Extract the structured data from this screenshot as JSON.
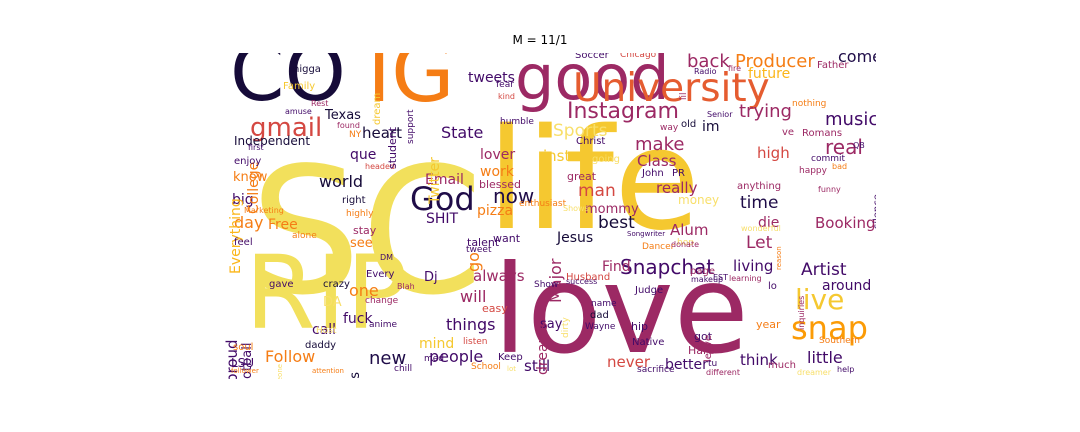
{
  "title": "M = 11/1",
  "words": [
    {
      "text": "SC",
      "color": "#f2e05c",
      "rotated": false
    },
    {
      "text": "life",
      "color": "#f5c830",
      "rotated": false
    },
    {
      "text": "love",
      "color": "#9c2964",
      "rotated": false
    },
    {
      "text": "RIP",
      "color": "#f2e05c",
      "rotated": false
    },
    {
      "text": "CO",
      "color": "#160b39",
      "rotated": false
    },
    {
      "text": "IG",
      "color": "#f57d15",
      "rotated": false
    },
    {
      "text": "good",
      "color": "#9c2964",
      "rotated": false
    },
    {
      "text": "University",
      "color": "#e55c30",
      "rotated": false
    },
    {
      "text": "Instagram",
      "color": "#9c2964",
      "rotated": false
    },
    {
      "text": "gmail",
      "color": "#d44842",
      "rotated": false
    },
    {
      "text": "God",
      "color": "#1f0c48",
      "rotated": false
    },
    {
      "text": "Snapchat",
      "color": "#420a68",
      "rotated": false
    },
    {
      "text": "snap",
      "color": "#fb9b06",
      "rotated": false
    },
    {
      "text": "live",
      "color": "#f5c830",
      "rotated": false
    },
    {
      "text": "back",
      "color": "#9c2964",
      "rotated": false
    },
    {
      "text": "Producer",
      "color": "#f57d15",
      "rotated": false
    },
    {
      "text": "come",
      "color": "#1f0c48",
      "rotated": false
    },
    {
      "text": "future",
      "color": "#fbb61a",
      "rotated": false
    },
    {
      "text": "trying",
      "color": "#9c2964",
      "rotated": false
    },
    {
      "text": "music",
      "color": "#420a68",
      "rotated": false
    },
    {
      "text": "real",
      "color": "#9c2964",
      "rotated": false
    },
    {
      "text": "Sports",
      "color": "#f8df6a",
      "rotated": false
    },
    {
      "text": "heart",
      "color": "#160b39",
      "rotated": false
    },
    {
      "text": "State",
      "color": "#420a68",
      "rotated": false
    },
    {
      "text": "que",
      "color": "#420a68",
      "rotated": false
    },
    {
      "text": "world",
      "color": "#160b39",
      "rotated": false
    },
    {
      "text": "tweets",
      "color": "#420a68",
      "rotated": false
    },
    {
      "text": "Texas",
      "color": "#160b39",
      "rotated": false
    },
    {
      "text": "make",
      "color": "#9c2964",
      "rotated": false
    },
    {
      "text": "Class",
      "color": "#9c2964",
      "rotated": false
    },
    {
      "text": "high",
      "color": "#d44842",
      "rotated": false
    },
    {
      "text": "now",
      "color": "#1f0c48",
      "rotated": false
    },
    {
      "text": "work",
      "color": "#f57d15",
      "rotated": false
    },
    {
      "text": "insta",
      "color": "#f5c830",
      "rotated": false
    },
    {
      "text": "lover",
      "color": "#9c2964",
      "rotated": false
    },
    {
      "text": "man",
      "color": "#d44842",
      "rotated": false
    },
    {
      "text": "really",
      "color": "#9c2964",
      "rotated": false
    },
    {
      "text": "best",
      "color": "#160b39",
      "rotated": false
    },
    {
      "text": "Alum",
      "color": "#9c2964",
      "rotated": false
    },
    {
      "text": "time",
      "color": "#1f0c48",
      "rotated": false
    },
    {
      "text": "Let",
      "color": "#9c2964",
      "rotated": false
    },
    {
      "text": "die",
      "color": "#9c2964",
      "rotated": false
    },
    {
      "text": "Booking",
      "color": "#9c2964",
      "rotated": false
    },
    {
      "text": "Artist",
      "color": "#420a68",
      "rotated": false
    },
    {
      "text": "around",
      "color": "#420a68",
      "rotated": false
    },
    {
      "text": "living",
      "color": "#420a68",
      "rotated": false
    },
    {
      "text": "Find",
      "color": "#9c2964",
      "rotated": false
    },
    {
      "text": "things",
      "color": "#420a68",
      "rotated": false
    },
    {
      "text": "Follow",
      "color": "#f57d15",
      "rotated": false
    },
    {
      "text": "new",
      "color": "#1f0c48",
      "rotated": false
    },
    {
      "text": "people",
      "color": "#420a68",
      "rotated": false
    },
    {
      "text": "never",
      "color": "#d44842",
      "rotated": false
    },
    {
      "text": "better",
      "color": "#420a68",
      "rotated": false
    },
    {
      "text": "think",
      "color": "#420a68",
      "rotated": false
    },
    {
      "text": "little",
      "color": "#420a68",
      "rotated": false
    },
    {
      "text": "still",
      "color": "#420a68",
      "rotated": false
    },
    {
      "text": "Email",
      "color": "#9c2964",
      "rotated": false
    },
    {
      "text": "SHIT",
      "color": "#420a68",
      "rotated": false
    },
    {
      "text": "pizza",
      "color": "#f57d15",
      "rotated": false
    },
    {
      "text": "Free",
      "color": "#f57d15",
      "rotated": false
    },
    {
      "text": "day",
      "color": "#f57d15",
      "rotated": false
    },
    {
      "text": "big",
      "color": "#420a68",
      "rotated": false
    },
    {
      "text": "know",
      "color": "#f57d15",
      "rotated": false
    },
    {
      "text": "see",
      "color": "#f57d15",
      "rotated": false
    },
    {
      "text": "one",
      "color": "#f57d15",
      "rotated": false
    },
    {
      "text": "call",
      "color": "#420a68",
      "rotated": false
    },
    {
      "text": "fuck",
      "color": "#420a68",
      "rotated": false
    },
    {
      "text": "will",
      "color": "#9c2964",
      "rotated": false
    },
    {
      "text": "always",
      "color": "#9c2964",
      "rotated": false
    },
    {
      "text": "say",
      "color": "#420a68",
      "rotated": false
    },
    {
      "text": "mind",
      "color": "#f5c830",
      "rotated": false
    },
    {
      "text": "Jesus",
      "color": "#160b39",
      "rotated": false
    },
    {
      "text": "money",
      "color": "#f8df6a",
      "rotated": false
    },
    {
      "text": "mommy",
      "color": "#9c2964",
      "rotated": false
    },
    {
      "text": "Independent",
      "color": "#160b39",
      "rotated": false
    },
    {
      "text": "Twitter",
      "color": "#f5c830",
      "rotated": true
    },
    {
      "text": "College",
      "color": "#f57d15",
      "rotated": true
    },
    {
      "text": "Everything",
      "color": "#fbb61a",
      "rotated": true
    },
    {
      "text": "proud",
      "color": "#420a68",
      "rotated": true
    },
    {
      "text": "Football",
      "color": "#420a68",
      "rotated": true
    },
    {
      "text": "go",
      "color": "#f57d15",
      "rotated": true
    },
    {
      "text": "Major",
      "color": "#9c2964",
      "rotated": true
    },
    {
      "text": "dreams",
      "color": "#9c2964",
      "rotated": true
    },
    {
      "text": "us",
      "color": "#160b39",
      "rotated": true
    },
    {
      "text": "LSU",
      "color": "#420a68",
      "rotated": false
    },
    {
      "text": "Dj",
      "color": "#420a68",
      "rotated": false
    },
    {
      "text": "DA",
      "color": "#f8df6a",
      "rotated": false
    },
    {
      "text": "Every",
      "color": "#420a68",
      "rotated": false
    },
    {
      "text": "easy",
      "color": "#d44842",
      "rotated": false
    },
    {
      "text": "talent",
      "color": "#420a68",
      "rotated": false
    },
    {
      "text": "want",
      "color": "#420a68",
      "rotated": false
    },
    {
      "text": "blessed",
      "color": "#9c2964",
      "rotated": false
    },
    {
      "text": "great",
      "color": "#9c2964",
      "rotated": false
    },
    {
      "text": "Christ",
      "color": "#420a68",
      "rotated": false
    },
    {
      "text": "going",
      "color": "#f8df6a",
      "rotated": false
    },
    {
      "text": "John",
      "color": "#420a68",
      "rotated": false
    },
    {
      "text": "PR",
      "color": "#420a68",
      "rotated": false
    },
    {
      "text": "page",
      "color": "#9c2964",
      "rotated": false
    },
    {
      "text": "hip",
      "color": "#420a68",
      "rotated": false
    },
    {
      "text": "Hard",
      "color": "#9c2964",
      "rotated": false
    },
    {
      "text": "Native",
      "color": "#420a68",
      "rotated": false
    },
    {
      "text": "got",
      "color": "#420a68",
      "rotated": false
    },
    {
      "text": "Judge",
      "color": "#420a68",
      "rotated": false
    },
    {
      "text": "dad",
      "color": "#160b39",
      "rotated": false
    },
    {
      "text": "name",
      "color": "#420a68",
      "rotated": false
    },
    {
      "text": "Wayne",
      "color": "#420a68",
      "rotated": false
    },
    {
      "text": "Husband",
      "color": "#d44842",
      "rotated": false
    },
    {
      "text": "Keep",
      "color": "#420a68",
      "rotated": false
    },
    {
      "text": "med",
      "color": "#420a68",
      "rotated": false
    },
    {
      "text": "listen",
      "color": "#d44842",
      "rotated": false
    },
    {
      "text": "School",
      "color": "#f57d15",
      "rotated": false
    },
    {
      "text": "Show",
      "color": "#420a68",
      "rotated": false
    },
    {
      "text": "crazy",
      "color": "#160b39",
      "rotated": false
    },
    {
      "text": "daddy",
      "color": "#160b39",
      "rotated": false
    },
    {
      "text": "gave",
      "color": "#420a68",
      "rotated": false
    },
    {
      "text": "feel",
      "color": "#420a68",
      "rotated": false
    },
    {
      "text": "change",
      "color": "#9c2964",
      "rotated": false
    },
    {
      "text": "anime",
      "color": "#420a68",
      "rotated": false
    },
    {
      "text": "soul",
      "color": "#f57d15",
      "rotated": false
    },
    {
      "text": "chill",
      "color": "#420a68",
      "rotated": false
    },
    {
      "text": "Host",
      "color": "#f8df6a",
      "rotated": false
    },
    {
      "text": "stay",
      "color": "#9c2964",
      "rotated": false
    },
    {
      "text": "right",
      "color": "#160b39",
      "rotated": false
    },
    {
      "text": "highly",
      "color": "#f57d15",
      "rotated": false
    },
    {
      "text": "alone",
      "color": "#f57d15",
      "rotated": false
    },
    {
      "text": "Marketing",
      "color": "#f57d15",
      "rotated": false
    },
    {
      "text": "enjoy",
      "color": "#420a68",
      "rotated": false
    },
    {
      "text": "first",
      "color": "#420a68",
      "rotated": false
    },
    {
      "text": "headed",
      "color": "#d44842",
      "rotated": false
    },
    {
      "text": "NY",
      "color": "#f57d15",
      "rotated": false
    },
    {
      "text": "humble",
      "color": "#420a68",
      "rotated": false
    },
    {
      "text": "student",
      "color": "#420a68",
      "rotated": true
    },
    {
      "text": "support",
      "color": "#420a68",
      "rotated": true
    },
    {
      "text": "dream",
      "color": "#f5c830",
      "rotated": true
    },
    {
      "text": "Family",
      "color": "#f5c830",
      "rotated": false
    },
    {
      "text": "nigga",
      "color": "#160b39",
      "rotated": false
    },
    {
      "text": "Rest",
      "color": "#9c2964",
      "rotated": false
    },
    {
      "text": "amuse",
      "color": "#420a68",
      "rotated": false
    },
    {
      "text": "fear",
      "color": "#420a68",
      "rotated": false
    },
    {
      "text": "kind",
      "color": "#d44842",
      "rotated": false
    },
    {
      "text": "found",
      "color": "#9c2964",
      "rotated": false
    },
    {
      "text": "Soccer",
      "color": "#420a68",
      "rotated": false
    },
    {
      "text": "Chicago",
      "color": "#d44842",
      "rotated": false
    },
    {
      "text": "Radio",
      "color": "#420a68",
      "rotated": false
    },
    {
      "text": "fire",
      "color": "#9c2964",
      "rotated": false
    },
    {
      "text": "Father",
      "color": "#9c2964",
      "rotated": false
    },
    {
      "text": "nothing",
      "color": "#f57d15",
      "rotated": false
    },
    {
      "text": "Senior",
      "color": "#420a68",
      "rotated": false
    },
    {
      "text": "old",
      "color": "#160b39",
      "rotated": false
    },
    {
      "text": "im",
      "color": "#160b39",
      "rotated": false
    },
    {
      "text": "way",
      "color": "#9c2964",
      "rotated": false
    },
    {
      "text": "ve",
      "color": "#9c2964",
      "rotated": false
    },
    {
      "text": "Romans",
      "color": "#9c2964",
      "rotated": false
    },
    {
      "text": "QB",
      "color": "#420a68",
      "rotated": false
    },
    {
      "text": "commit",
      "color": "#420a68",
      "rotated": false
    },
    {
      "text": "silence",
      "color": "#420a68",
      "rotated": true
    },
    {
      "text": "happy",
      "color": "#9c2964",
      "rotated": false
    },
    {
      "text": "anything",
      "color": "#9c2964",
      "rotated": false
    },
    {
      "text": "bad",
      "color": "#f57d15",
      "rotated": false
    },
    {
      "text": "Dancer",
      "color": "#f57d15",
      "rotated": false
    },
    {
      "text": "hop",
      "color": "#f8df6a",
      "rotated": false
    },
    {
      "text": "makeup",
      "color": "#420a68",
      "rotated": false
    },
    {
      "text": "EST",
      "color": "#420a68",
      "rotated": false
    },
    {
      "text": "learning",
      "color": "#9c2964",
      "rotated": false
    },
    {
      "text": "lo",
      "color": "#420a68",
      "rotated": false
    },
    {
      "text": "leave",
      "color": "#9c2964",
      "rotated": true
    },
    {
      "text": "tu",
      "color": "#420a68",
      "rotated": false
    },
    {
      "text": "year",
      "color": "#f57d15",
      "rotated": false
    },
    {
      "text": "Southern",
      "color": "#f57d15",
      "rotated": false
    },
    {
      "text": "much",
      "color": "#9c2964",
      "rotated": false
    },
    {
      "text": "sacrifice",
      "color": "#420a68",
      "rotated": false
    },
    {
      "text": "different",
      "color": "#9c2964",
      "rotated": false
    },
    {
      "text": "funny",
      "color": "#9c2964",
      "rotated": false
    },
    {
      "text": "help",
      "color": "#420a68",
      "rotated": false
    },
    {
      "text": "dreamer",
      "color": "#f8df6a",
      "rotated": false
    },
    {
      "text": "Songwriter",
      "color": "#420a68",
      "rotated": false
    },
    {
      "text": "donate",
      "color": "#9c2964",
      "rotated": false
    },
    {
      "text": "tweet",
      "color": "#420a68",
      "rotated": false
    },
    {
      "text": "success",
      "color": "#420a68",
      "rotated": false
    },
    {
      "text": "enthusiast",
      "color": "#f57d15",
      "rotated": false
    },
    {
      "text": "dirty",
      "color": "#f8df6a",
      "rotated": true
    },
    {
      "text": "Shows",
      "color": "#f8df6a",
      "rotated": false
    },
    {
      "text": "DM",
      "color": "#420a68",
      "rotated": false
    },
    {
      "text": "Blah",
      "color": "#9c2964",
      "rotated": false
    },
    {
      "text": "follower",
      "color": "#f57d15",
      "rotated": false
    },
    {
      "text": "attention",
      "color": "#f57d15",
      "rotated": false
    },
    {
      "text": "lot",
      "color": "#f8df6a",
      "rotated": false
    },
    {
      "text": "someone",
      "color": "#f8df6a",
      "rotated": true
    },
    {
      "text": "wonderful",
      "color": "#f8df6a",
      "rotated": false
    },
    {
      "text": "inquiries",
      "color": "#9c2964",
      "rotated": true
    },
    {
      "text": "reason",
      "color": "#f57d15",
      "rotated": true
    },
    {
      "text": "lil",
      "color": "#9c2964",
      "rotated": true
    }
  ]
}
